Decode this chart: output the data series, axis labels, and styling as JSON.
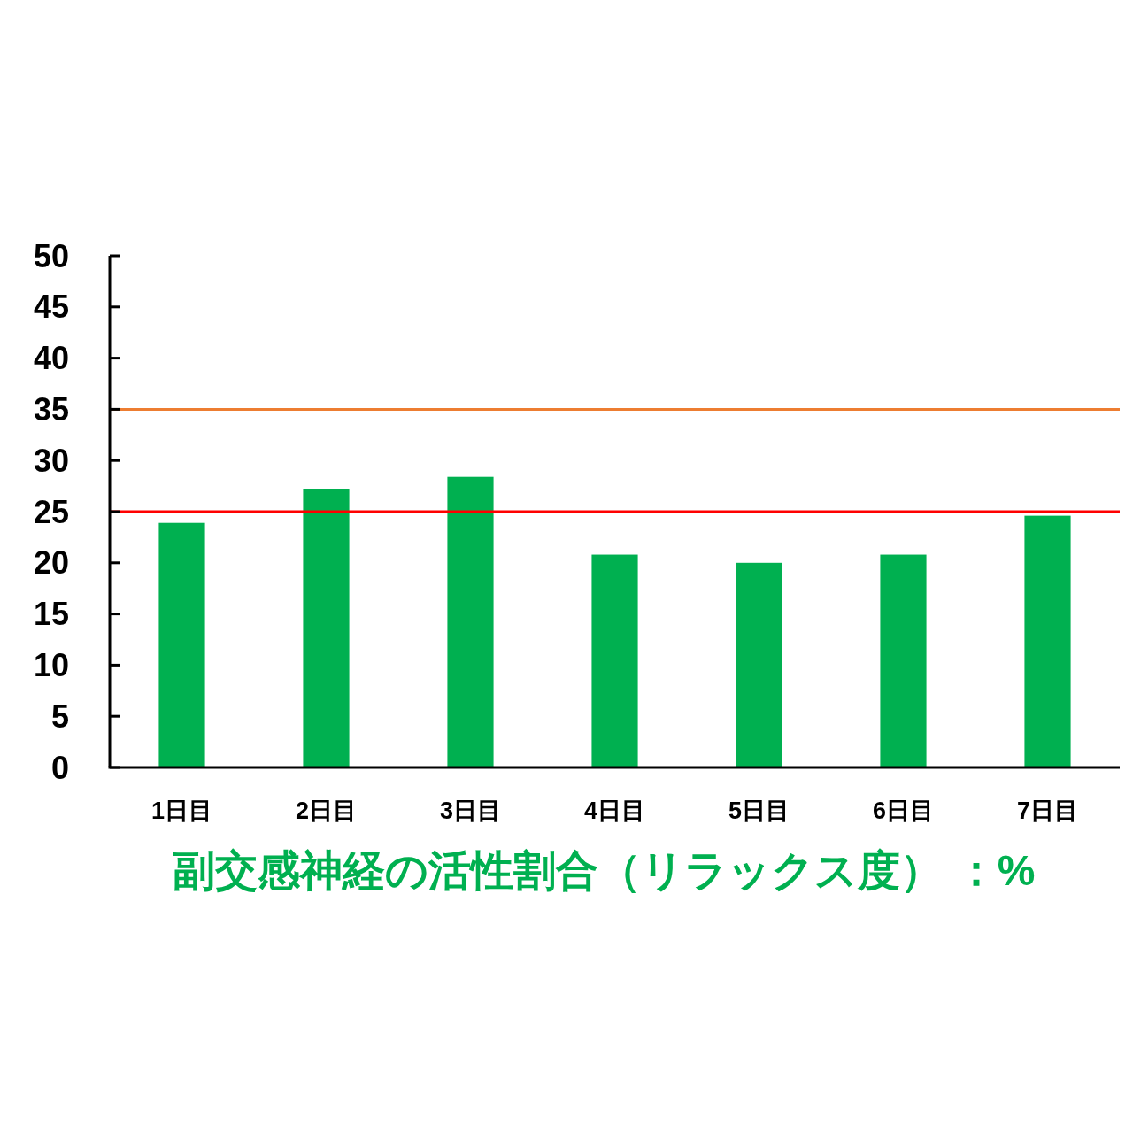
{
  "chart_data": {
    "type": "bar",
    "categories": [
      "1日目",
      "2日目",
      "3日目",
      "4日目",
      "5日目",
      "6日目",
      "7日目"
    ],
    "values": [
      23.9,
      27.2,
      28.4,
      20.8,
      20,
      20.8,
      24.6
    ],
    "color": "#00b050",
    "xlabel": "副交感神経の活性割合（リラックス度） ：%",
    "ylim": [
      0,
      50
    ],
    "yticks": [
      0,
      5,
      10,
      15,
      20,
      25,
      30,
      35,
      40,
      45,
      50
    ],
    "ref_lines": [
      {
        "axis": "y",
        "value": 35,
        "color": "#ed7d31"
      },
      {
        "axis": "y",
        "value": 25,
        "color": "#ff0000"
      }
    ]
  }
}
